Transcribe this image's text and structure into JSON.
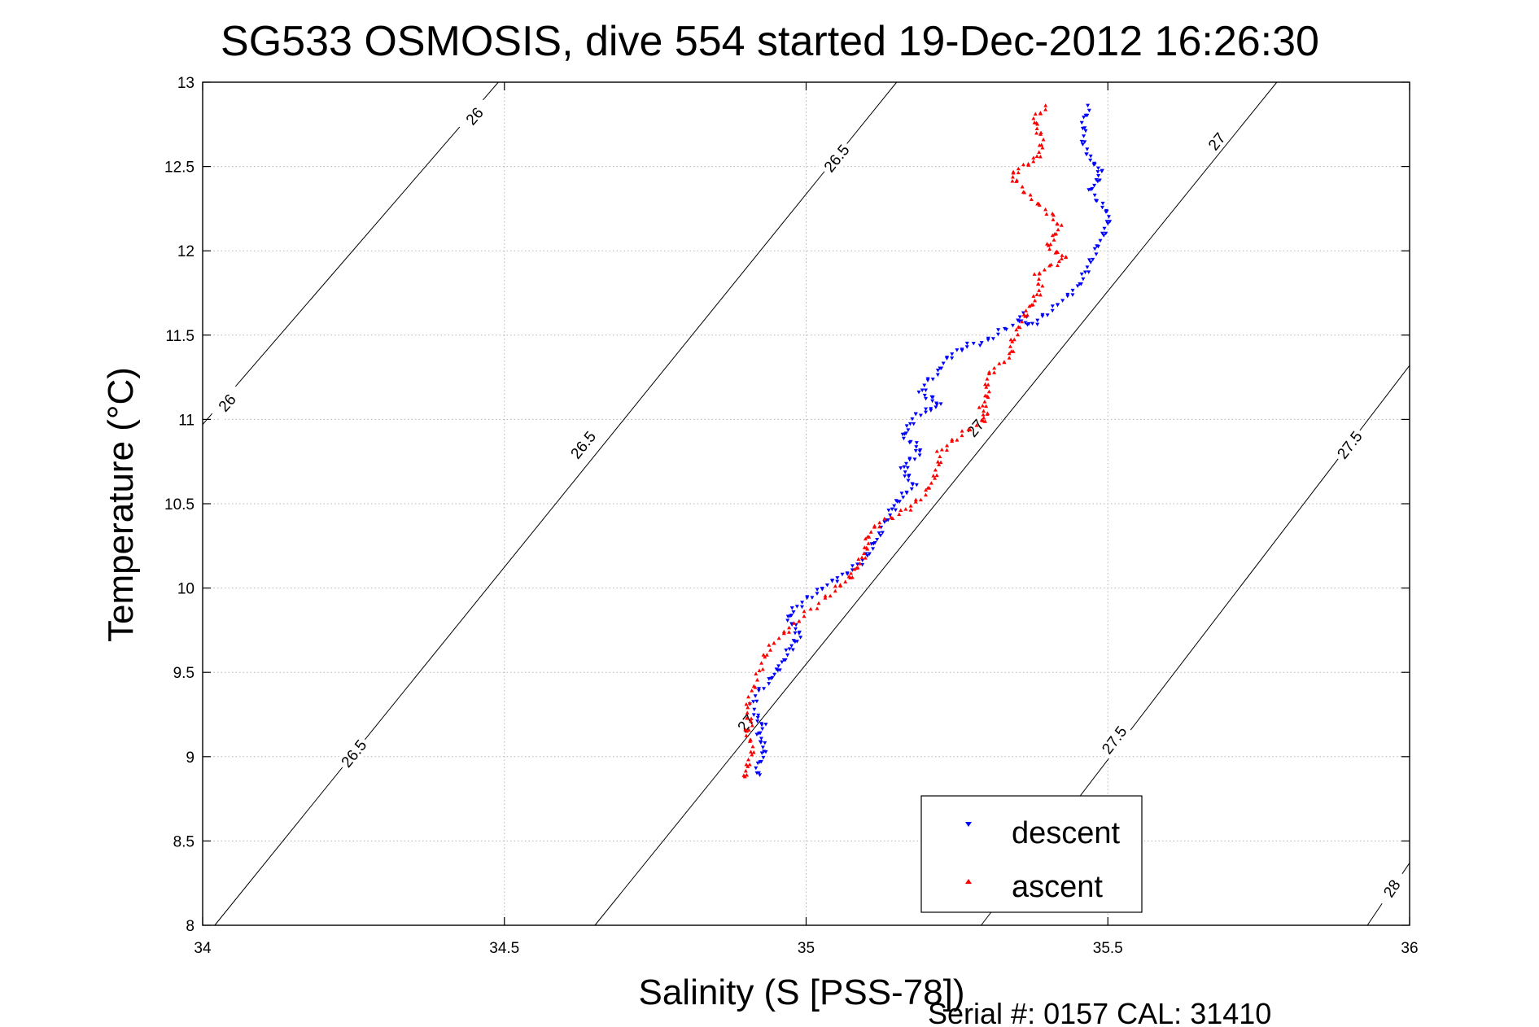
{
  "chart_data": {
    "type": "scatter",
    "title": "SG533 OSMOSIS, dive 554 started 19-Dec-2012 16:26:30",
    "xlabel": "Salinity (S [PSS-78])",
    "ylabel": "Temperature (°C)",
    "xlim": [
      34,
      36
    ],
    "ylim": [
      8,
      13
    ],
    "xticks": [
      "34",
      "34.5",
      "35",
      "35.5",
      "36"
    ],
    "yticks": [
      "8",
      "8.5",
      "9",
      "9.5",
      "10",
      "10.5",
      "11",
      "11.5",
      "12",
      "12.5",
      "13"
    ],
    "grid": true,
    "legend_position": "bottom-right",
    "footer": "Serial #: 0157  CAL: 31410",
    "density_contours": [
      {
        "label": "26",
        "points": [
          [
            34.0,
            10.97
          ],
          [
            34.49,
            13.0
          ]
        ],
        "label_positions": [
          [
            34.04,
            11.1
          ],
          [
            34.45,
            12.8
          ]
        ]
      },
      {
        "label": "26.5",
        "points": [
          [
            34.02,
            8.0
          ],
          [
            35.15,
            13.0
          ]
        ],
        "label_positions": [
          [
            34.25,
            9.02
          ],
          [
            35.05,
            12.55
          ],
          [
            34.63,
            10.85
          ]
        ]
      },
      {
        "label": "27",
        "points": [
          [
            34.65,
            8.0
          ],
          [
            35.78,
            13.0
          ]
        ],
        "label_positions": [
          [
            34.9,
            9.2
          ],
          [
            35.28,
            10.95
          ],
          [
            35.68,
            12.65
          ]
        ]
      },
      {
        "label": "27.5",
        "points": [
          [
            35.29,
            8.0
          ],
          [
            36.0,
            11.32
          ]
        ],
        "label_positions": [
          [
            35.51,
            9.1
          ],
          [
            35.9,
            10.85
          ]
        ]
      },
      {
        "label": "28",
        "points": [
          [
            35.93,
            8.0
          ],
          [
            36.0,
            8.37
          ]
        ],
        "label_positions": [
          [
            35.97,
            8.22
          ]
        ]
      }
    ],
    "series": [
      {
        "name": "descent",
        "color": "#0000ff",
        "marker": "triangle-down",
        "points": [
          [
            35.47,
            12.85
          ],
          [
            35.46,
            12.78
          ],
          [
            35.46,
            12.7
          ],
          [
            35.46,
            12.62
          ],
          [
            35.47,
            12.55
          ],
          [
            35.48,
            12.5
          ],
          [
            35.49,
            12.46
          ],
          [
            35.48,
            12.4
          ],
          [
            35.47,
            12.35
          ],
          [
            35.49,
            12.27
          ],
          [
            35.5,
            12.22
          ],
          [
            35.5,
            12.15
          ],
          [
            35.49,
            12.08
          ],
          [
            35.48,
            12.0
          ],
          [
            35.47,
            11.92
          ],
          [
            35.46,
            11.85
          ],
          [
            35.45,
            11.78
          ],
          [
            35.43,
            11.72
          ],
          [
            35.41,
            11.66
          ],
          [
            35.39,
            11.6
          ],
          [
            35.37,
            11.55
          ],
          [
            35.36,
            11.62
          ],
          [
            35.35,
            11.57
          ],
          [
            35.32,
            11.52
          ],
          [
            35.3,
            11.46
          ],
          [
            35.27,
            11.44
          ],
          [
            35.25,
            11.4
          ],
          [
            35.23,
            11.35
          ],
          [
            35.22,
            11.28
          ],
          [
            35.2,
            11.22
          ],
          [
            35.19,
            11.15
          ],
          [
            35.21,
            11.12
          ],
          [
            35.22,
            11.08
          ],
          [
            35.2,
            11.05
          ],
          [
            35.18,
            11.02
          ],
          [
            35.17,
            10.95
          ],
          [
            35.16,
            10.9
          ],
          [
            35.18,
            10.85
          ],
          [
            35.19,
            10.8
          ],
          [
            35.17,
            10.75
          ],
          [
            35.16,
            10.7
          ],
          [
            35.17,
            10.65
          ],
          [
            35.18,
            10.6
          ],
          [
            35.16,
            10.55
          ],
          [
            35.15,
            10.5
          ],
          [
            35.14,
            10.45
          ],
          [
            35.13,
            10.38
          ],
          [
            35.12,
            10.3
          ],
          [
            35.11,
            10.25
          ],
          [
            35.1,
            10.18
          ],
          [
            35.08,
            10.12
          ],
          [
            35.06,
            10.07
          ],
          [
            35.04,
            10.03
          ],
          [
            35.02,
            9.98
          ],
          [
            35.0,
            9.93
          ],
          [
            34.98,
            9.87
          ],
          [
            34.97,
            9.82
          ],
          [
            34.98,
            9.77
          ],
          [
            34.99,
            9.72
          ],
          [
            34.98,
            9.67
          ],
          [
            34.97,
            9.62
          ],
          [
            34.96,
            9.55
          ],
          [
            34.95,
            9.5
          ],
          [
            34.94,
            9.45
          ],
          [
            34.92,
            9.38
          ],
          [
            34.91,
            9.3
          ],
          [
            34.92,
            9.22
          ],
          [
            34.93,
            9.18
          ],
          [
            34.92,
            9.12
          ],
          [
            34.93,
            9.07
          ],
          [
            34.93,
            9.01
          ],
          [
            34.92,
            8.95
          ],
          [
            34.92,
            8.88
          ]
        ]
      },
      {
        "name": "ascent",
        "color": "#ff0000",
        "marker": "triangle-up",
        "points": [
          [
            35.4,
            12.85
          ],
          [
            35.38,
            12.8
          ],
          [
            35.38,
            12.74
          ],
          [
            35.39,
            12.68
          ],
          [
            35.39,
            12.6
          ],
          [
            35.38,
            12.54
          ],
          [
            35.36,
            12.5
          ],
          [
            35.34,
            12.45
          ],
          [
            35.35,
            12.4
          ],
          [
            35.37,
            12.32
          ],
          [
            35.39,
            12.26
          ],
          [
            35.41,
            12.2
          ],
          [
            35.42,
            12.14
          ],
          [
            35.41,
            12.08
          ],
          [
            35.4,
            12.02
          ],
          [
            35.42,
            11.98
          ],
          [
            35.43,
            11.95
          ],
          [
            35.4,
            11.9
          ],
          [
            35.38,
            11.85
          ],
          [
            35.39,
            11.78
          ],
          [
            35.38,
            11.72
          ],
          [
            35.37,
            11.66
          ],
          [
            35.36,
            11.6
          ],
          [
            35.35,
            11.52
          ],
          [
            35.34,
            11.45
          ],
          [
            35.34,
            11.38
          ],
          [
            35.32,
            11.32
          ],
          [
            35.3,
            11.26
          ],
          [
            35.3,
            11.18
          ],
          [
            35.3,
            11.12
          ],
          [
            35.29,
            11.06
          ],
          [
            35.3,
            11.02
          ],
          [
            35.29,
            10.98
          ],
          [
            35.26,
            10.92
          ],
          [
            35.24,
            10.86
          ],
          [
            35.22,
            10.8
          ],
          [
            35.22,
            10.72
          ],
          [
            35.21,
            10.64
          ],
          [
            35.2,
            10.57
          ],
          [
            35.18,
            10.5
          ],
          [
            35.16,
            10.45
          ],
          [
            35.13,
            10.4
          ],
          [
            35.11,
            10.35
          ],
          [
            35.1,
            10.28
          ],
          [
            35.1,
            10.22
          ],
          [
            35.09,
            10.16
          ],
          [
            35.08,
            10.1
          ],
          [
            35.07,
            10.05
          ],
          [
            35.05,
            10.0
          ],
          [
            35.03,
            9.93
          ],
          [
            35.0,
            9.85
          ],
          [
            34.98,
            9.78
          ],
          [
            34.96,
            9.72
          ],
          [
            34.94,
            9.65
          ],
          [
            34.93,
            9.58
          ],
          [
            34.92,
            9.48
          ],
          [
            34.91,
            9.38
          ],
          [
            34.9,
            9.28
          ],
          [
            34.91,
            9.2
          ],
          [
            34.9,
            9.14
          ],
          [
            34.91,
            9.08
          ],
          [
            34.91,
            9.0
          ],
          [
            34.9,
            8.93
          ],
          [
            34.9,
            8.87
          ]
        ]
      }
    ]
  }
}
